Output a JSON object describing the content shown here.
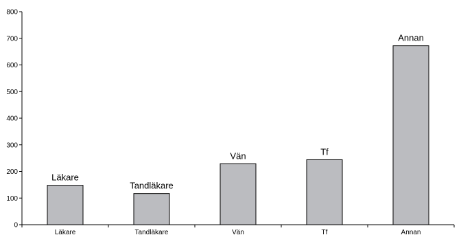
{
  "chart_data": {
    "type": "bar",
    "title": "",
    "xlabel": "",
    "ylabel": "",
    "ylim": [
      0,
      800
    ],
    "yticks": [
      0,
      100,
      200,
      300,
      400,
      500,
      600,
      700,
      800
    ],
    "categories": [
      "Läkare",
      "Tandläkare",
      "Vän",
      "Tf",
      "Annan"
    ],
    "values": [
      148,
      117,
      229,
      244,
      672
    ],
    "data_labels": [
      "Läkare",
      "Tandläkare",
      "Vän",
      "Tf",
      "Annan"
    ],
    "bar_color": "#bbbcc0",
    "grid": false,
    "legend": "none"
  }
}
